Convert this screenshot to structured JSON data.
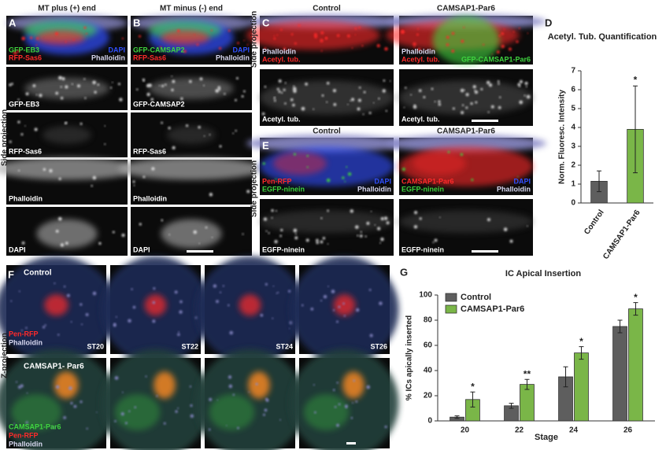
{
  "figure": {
    "side_labels": [
      "Side projection",
      "Side projection",
      "Side projection",
      "Z-projection"
    ],
    "A": {
      "label": "A",
      "header": "MT plus (+) end",
      "overlay": [
        "GFP-EB3",
        "RFP-Sas6",
        "DAPI",
        "Phalloidin"
      ],
      "rows": [
        "GFP-EB3",
        "RFP-Sas6",
        "Phalloidin",
        "DAPI"
      ]
    },
    "B": {
      "label": "B",
      "header": "MT minus (-) end",
      "overlay": [
        "GFP-CAMSAP2",
        "RFP-Sas6",
        "DAPI",
        "Phalloidin"
      ],
      "rows": [
        "GFP-CAMSAP2",
        "RFP-Sas6",
        "Phalloidin",
        "DAPI"
      ]
    },
    "C": {
      "label": "C",
      "headers": [
        "Control",
        "CAMSAP1-Par6"
      ],
      "overlay_left": [
        "Phalloidin",
        "Acetyl. tub."
      ],
      "overlay_right": [
        "Phalloidin",
        "Acetyl. tub.",
        "GFP-CAMSAP1-Par6"
      ],
      "rows": [
        "Acetyl. tub.",
        "Acetyl. tub."
      ]
    },
    "E": {
      "label": "E",
      "headers": [
        "Control",
        "CAMSAP1-Par6"
      ],
      "overlay_left": [
        "Pen-RFP",
        "EGFP-ninein",
        "DAPI",
        "Phalloidin"
      ],
      "overlay_right": [
        "CAMSAP1-Par6",
        "EGFP-ninein",
        "DAPI",
        "Phalloidin"
      ],
      "rows": [
        "EGFP-ninein",
        "EGFP-ninein"
      ]
    },
    "F": {
      "label": "F",
      "control": "Control",
      "control_overlay": [
        "Pen-RFP",
        "Phalloidin"
      ],
      "stages": [
        "ST20",
        "ST22",
        "ST24",
        "ST26"
      ],
      "treated": "CAMSAP1- Par6",
      "treated_overlay": [
        "CAMSAP1-Par6",
        "Pen-RFP",
        "Phalloidin"
      ]
    },
    "D": {
      "label": "D"
    },
    "G": {
      "label": "G"
    }
  },
  "chart_data": [
    {
      "type": "bar",
      "title": "Acetyl. Tub. Quantification",
      "y_label": "Norm. Fluoresc. Intensity",
      "categories": [
        "Control",
        "CAMSAP1-Par6"
      ],
      "values": [
        1.15,
        3.9
      ],
      "errors": [
        0.55,
        2.3
      ],
      "colors": [
        "#5e5e5e",
        "#7ab648"
      ],
      "annotations": [
        null,
        "*"
      ],
      "ylim": [
        0,
        7
      ],
      "yticks": [
        0,
        1,
        2,
        3,
        4,
        5,
        6,
        7
      ]
    },
    {
      "type": "grouped-bar",
      "title": "IC Apical Insertion",
      "y_label": "% ICs apically inserted",
      "x_label": "Stage",
      "categories": [
        "20",
        "22",
        "24",
        "26"
      ],
      "series": [
        {
          "name": "Control",
          "color": "#5e5e5e",
          "values": [
            3,
            12,
            35,
            75
          ],
          "errors": [
            1,
            2,
            8,
            5
          ]
        },
        {
          "name": "CAMSAP1-Par6",
          "color": "#7ab648",
          "values": [
            17,
            29,
            54,
            89
          ],
          "errors": [
            6,
            4,
            5,
            5
          ],
          "annotations": [
            "*",
            "**",
            "*",
            "*"
          ]
        }
      ],
      "ylim": [
        0,
        100
      ],
      "yticks": [
        0,
        20,
        40,
        60,
        80,
        100
      ],
      "legend": "upper-left"
    }
  ]
}
